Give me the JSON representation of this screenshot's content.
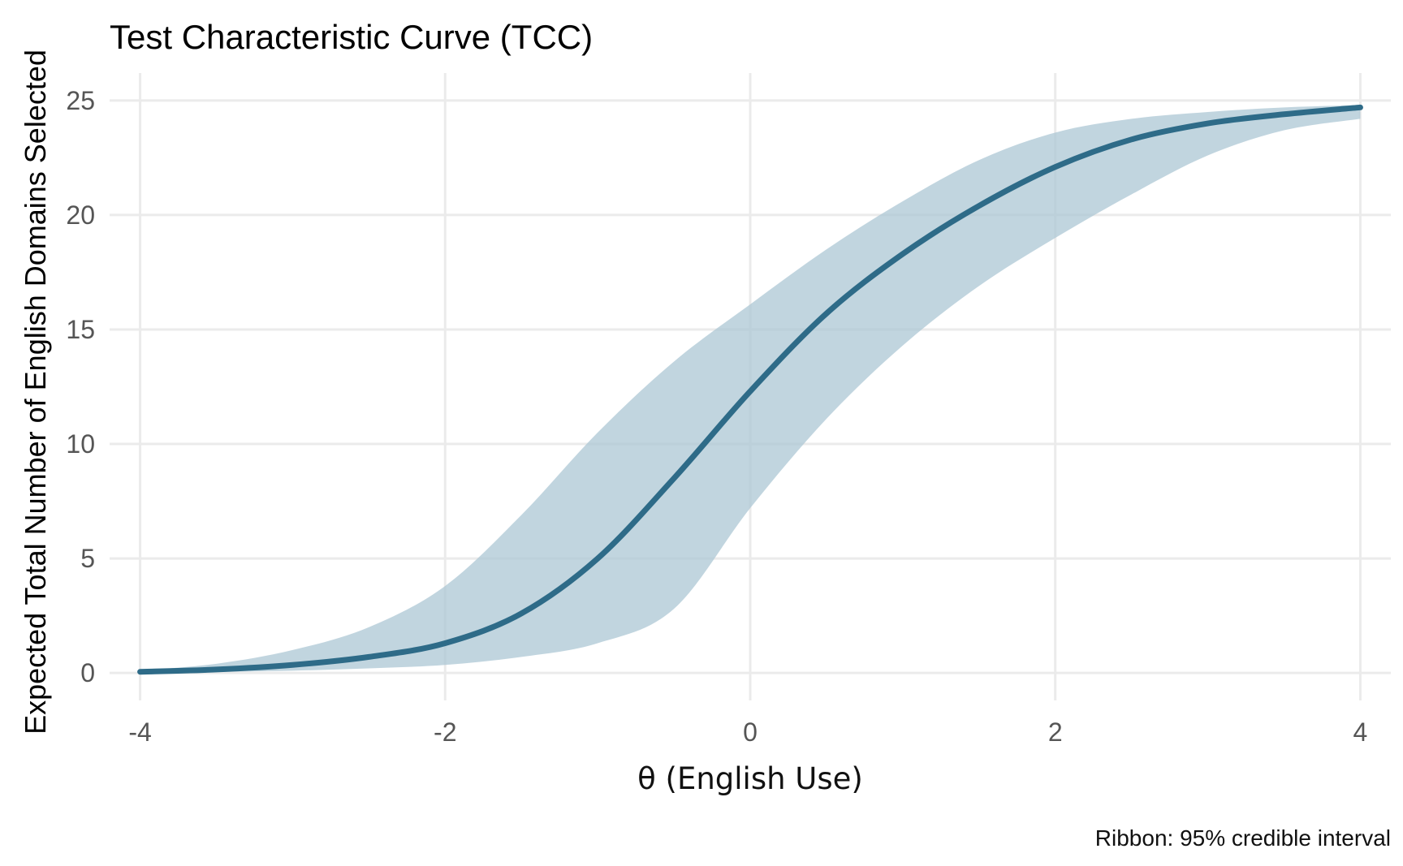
{
  "chart_data": {
    "type": "line",
    "title": "Test Characteristic Curve (TCC)",
    "xlabel": "θ (English Use)",
    "ylabel": "Expected Total Number of English Domains Selected",
    "caption": "Ribbon: 95% credible interval",
    "xlim": [
      -4.2,
      4.2
    ],
    "ylim": [
      -1.2,
      26.2
    ],
    "x_ticks": [
      -4,
      -2,
      0,
      2,
      4
    ],
    "x_tick_labels": [
      "-4",
      "-2",
      "0",
      "2",
      "4"
    ],
    "y_ticks": [
      0,
      5,
      10,
      15,
      20,
      25
    ],
    "y_tick_labels": [
      "0",
      "5",
      "10",
      "15",
      "20",
      "25"
    ],
    "grid": true,
    "legend": "none",
    "colors": {
      "line": "#2e6b88",
      "ribbon": "#a9c5d3"
    },
    "series": [
      {
        "x": [
          -4,
          -3.5,
          -3,
          -2.5,
          -2,
          -1.5,
          -1,
          -0.5,
          0,
          0.5,
          1,
          1.5,
          2,
          2.5,
          3,
          3.5,
          4
        ],
        "values": [
          0.05,
          0.15,
          0.35,
          0.7,
          1.3,
          2.6,
          5.0,
          8.5,
          12.3,
          15.7,
          18.3,
          20.4,
          22.1,
          23.3,
          24.0,
          24.4,
          24.7
        ],
        "lower": [
          0.02,
          0.05,
          0.1,
          0.2,
          0.35,
          0.7,
          1.3,
          2.8,
          7.2,
          11.1,
          14.3,
          16.9,
          19.0,
          20.9,
          22.6,
          23.7,
          24.2
        ],
        "upper": [
          0.1,
          0.4,
          1.0,
          2.0,
          3.8,
          6.9,
          10.5,
          13.6,
          16.1,
          18.5,
          20.6,
          22.4,
          23.6,
          24.2,
          24.5,
          24.7,
          24.8
        ]
      }
    ]
  }
}
